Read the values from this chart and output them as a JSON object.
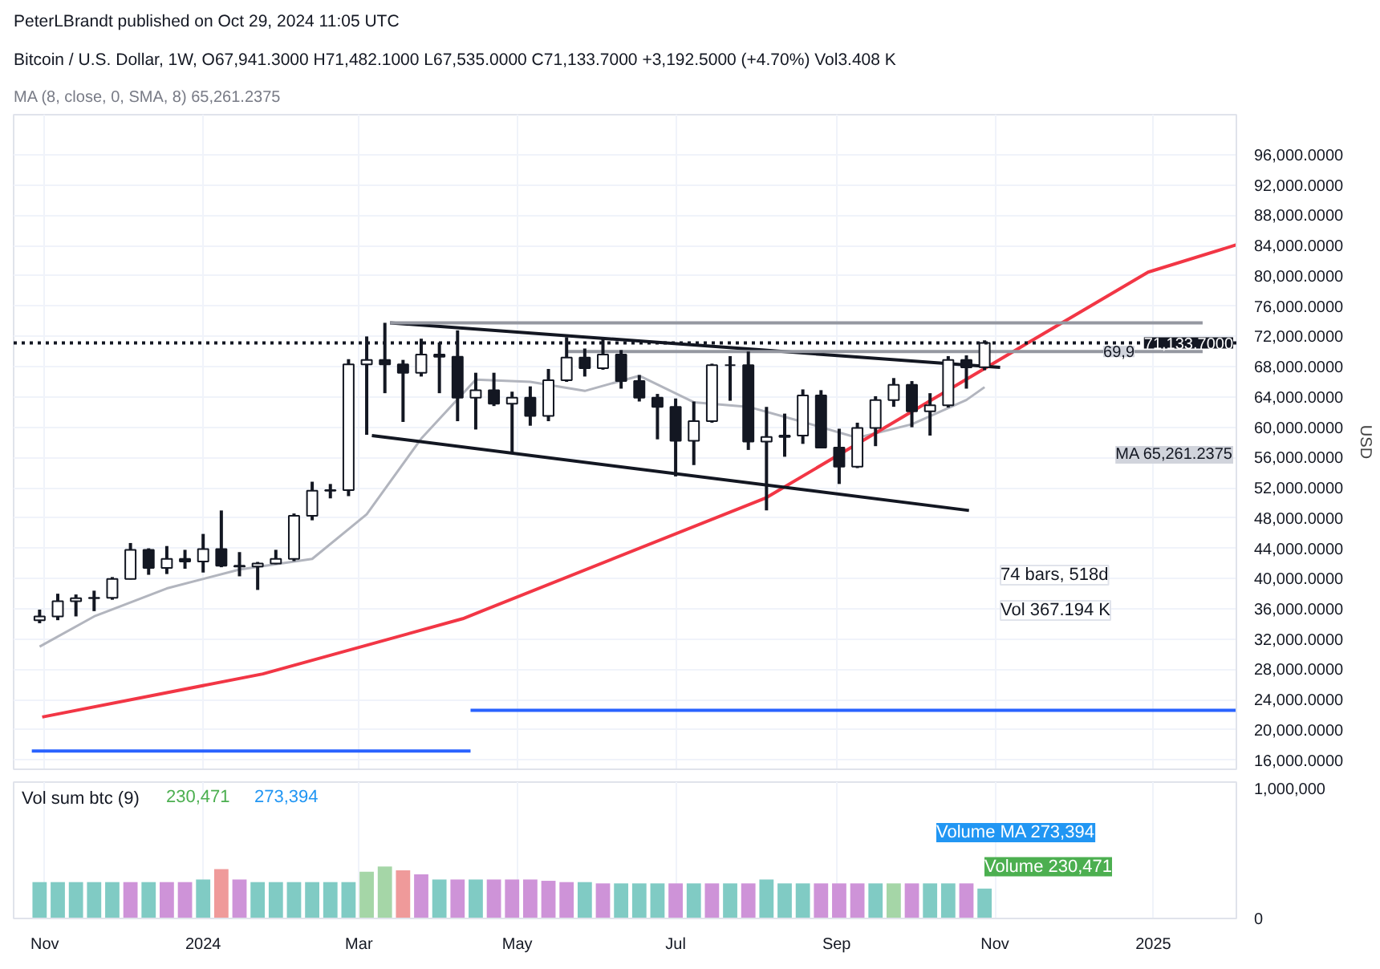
{
  "chart_data": [
    {
      "type": "candlestick",
      "title": "Bitcoin / U.S. Dollar, 1W, O67,941.3000 H71,482.1000 L67,535.0000 C71,133.7000 +3,192.5000 (+4.70%) Vol3.408 K",
      "subtitle": "MA (8, close, 0, SMA, 8) 65,261.2375",
      "ylabel": "USD",
      "annotations": [
        "PeterLBrandt published on Oct 29, 2024 11:05 UTC",
        "74 bars, 518d",
        "Vol 367.194 K",
        "MA 65,261.2375",
        {
          "text": "69,9",
          "x": "2024-12-26",
          "y": 70000
        }
      ],
      "x": [
        "2023-10-30",
        "2023-11-06",
        "2023-11-13",
        "2023-11-20",
        "2023-11-27",
        "2023-12-04",
        "2023-12-11",
        "2023-12-18",
        "2023-12-25",
        "2024-01-01",
        "2024-01-08",
        "2024-01-15",
        "2024-01-22",
        "2024-01-29",
        "2024-02-05",
        "2024-02-12",
        "2024-02-19",
        "2024-02-26",
        "2024-03-04",
        "2024-03-11",
        "2024-03-18",
        "2024-03-25",
        "2024-04-01",
        "2024-04-08",
        "2024-04-15",
        "2024-04-22",
        "2024-04-29",
        "2024-05-06",
        "2024-05-13",
        "2024-05-20",
        "2024-05-27",
        "2024-06-03",
        "2024-06-10",
        "2024-06-17",
        "2024-06-24",
        "2024-07-01",
        "2024-07-08",
        "2024-07-15",
        "2024-07-22",
        "2024-07-29",
        "2024-08-05",
        "2024-08-12",
        "2024-08-19",
        "2024-08-26",
        "2024-09-02",
        "2024-09-09",
        "2024-09-16",
        "2024-09-23",
        "2024-09-30",
        "2024-10-07",
        "2024-10-14",
        "2024-10-21",
        "2024-10-28"
      ],
      "ohlc": [
        [
          34500,
          35900,
          34100,
          35000
        ],
        [
          35000,
          38000,
          34500,
          37000
        ],
        [
          37000,
          37900,
          35000,
          37400
        ],
        [
          37400,
          38400,
          35700,
          37450
        ],
        [
          37450,
          40200,
          37200,
          39950
        ],
        [
          39950,
          44700,
          39900,
          43800
        ],
        [
          43800,
          44000,
          40500,
          41400
        ],
        [
          41400,
          44300,
          40600,
          42600
        ],
        [
          42600,
          43800,
          41300,
          42250
        ],
        [
          42250,
          45900,
          40800,
          43900
        ],
        [
          43900,
          49000,
          41500,
          41700
        ],
        [
          41700,
          43500,
          40300,
          41600
        ],
        [
          41600,
          42200,
          38500,
          42000
        ],
        [
          42000,
          43800,
          41900,
          42600
        ],
        [
          42600,
          48600,
          42300,
          48300
        ],
        [
          48300,
          52800,
          47700,
          51600
        ],
        [
          51600,
          52500,
          50600,
          51700
        ],
        [
          51700,
          69000,
          50900,
          68300
        ],
        [
          68300,
          72000,
          59000,
          68900
        ],
        [
          68900,
          73800,
          64500,
          68300
        ],
        [
          68300,
          68900,
          60700,
          67200
        ],
        [
          67200,
          71700,
          66700,
          69600
        ],
        [
          69600,
          71200,
          64500,
          69300
        ],
        [
          69300,
          72800,
          60800,
          63900
        ],
        [
          63900,
          67200,
          59700,
          64900
        ],
        [
          64900,
          67200,
          62800,
          63100
        ],
        [
          63100,
          64700,
          56500,
          63900
        ],
        [
          63900,
          65400,
          60200,
          61500
        ],
        [
          61500,
          67700,
          60800,
          66200
        ],
        [
          66200,
          71900,
          66000,
          69200
        ],
        [
          69200,
          70400,
          66700,
          67800
        ],
        [
          67800,
          71900,
          67600,
          69600
        ],
        [
          69600,
          70200,
          65100,
          66100
        ],
        [
          66100,
          66900,
          63400,
          63900
        ],
        [
          63900,
          64400,
          58400,
          62700
        ],
        [
          62700,
          63800,
          53500,
          58200
        ],
        [
          58200,
          63400,
          55000,
          60800
        ],
        [
          60800,
          68400,
          60600,
          68200
        ],
        [
          68200,
          69400,
          63500,
          68200
        ],
        [
          68200,
          70000,
          57000,
          58100
        ],
        [
          58100,
          62700,
          49000,
          58700
        ],
        [
          58700,
          61800,
          56100,
          58900
        ],
        [
          58900,
          65000,
          57800,
          64200
        ],
        [
          64200,
          64900,
          57200,
          57300
        ],
        [
          57300,
          59800,
          52500,
          54800
        ],
        [
          54800,
          60600,
          54600,
          59900
        ],
        [
          59900,
          64100,
          57500,
          63600
        ],
        [
          63600,
          66500,
          62700,
          65600
        ],
        [
          65600,
          66100,
          60000,
          62100
        ],
        [
          62100,
          64500,
          58900,
          62900
        ],
        [
          62900,
          69400,
          62600,
          68900
        ],
        [
          68900,
          69500,
          65100,
          67900
        ],
        [
          67941.3,
          71482.1,
          67535,
          71133.7
        ]
      ],
      "series": [
        {
          "type": "line",
          "color": "#b2b5be",
          "x": [
            "2023-10-30",
            "2023-11-20",
            "2023-12-18",
            "2024-01-15",
            "2024-02-12",
            "2024-03-04",
            "2024-03-25",
            "2024-04-15",
            "2024-05-06",
            "2024-05-27",
            "2024-06-17",
            "2024-07-08",
            "2024-07-29",
            "2024-08-19",
            "2024-09-09",
            "2024-09-30",
            "2024-10-21",
            "2024-10-28"
          ],
          "values": [
            31000,
            35000,
            38700,
            41200,
            42600,
            48500,
            58500,
            66300,
            66000,
            64800,
            66800,
            63300,
            62700,
            60700,
            58600,
            60400,
            63600,
            65300
          ]
        },
        {
          "type": "line",
          "color": "#f23645",
          "x": [
            "2023-10-31",
            "2024-01-24",
            "2024-04-10",
            "2024-08-05",
            "2024-11-13",
            "2024-12-30",
            "2025-02-02"
          ],
          "values": [
            21700,
            27400,
            34700,
            50700,
            71000,
            80500,
            84100
          ]
        },
        {
          "type": "line",
          "color": "#131722",
          "x": [
            "2024-03-13",
            "2024-11-03"
          ],
          "values": [
            73800,
            67900
          ]
        },
        {
          "type": "line",
          "color": "#131722",
          "x": [
            "2024-03-06",
            "2024-10-22"
          ],
          "values": [
            58900,
            49000
          ]
        },
        {
          "type": "line",
          "color": "#9598a1",
          "x": [
            "2024-03-13",
            "2025-01-20"
          ],
          "values": [
            73800,
            73800
          ]
        },
        {
          "type": "line",
          "color": "#9598a1",
          "x": [
            "2024-05-20",
            "2025-01-20"
          ],
          "values": [
            70000,
            70000
          ]
        },
        {
          "type": "line",
          "color": "#2962ff",
          "x": [
            "2024-04-13",
            "2025-02-02"
          ],
          "values": [
            22600,
            22600
          ]
        },
        {
          "type": "line",
          "color": "#2962ff",
          "x": [
            "2023-10-27",
            "2024-04-13"
          ],
          "values": [
            17200,
            17200
          ]
        }
      ],
      "ref_lines": [
        {
          "axis": "y",
          "value": 71133.7,
          "label": "71,133.7000",
          "line_style": "dotted",
          "color": "#131722"
        }
      ],
      "xlim": [
        "2023-10-20",
        "2025-02-02"
      ],
      "ylim": [
        14800,
        101300
      ],
      "yticks": [
        {
          "value": 16000,
          "label": "16,000.0000"
        },
        {
          "value": 20000,
          "label": "20,000.0000"
        },
        {
          "value": 24000,
          "label": "24,000.0000"
        },
        {
          "value": 28000,
          "label": "28,000.0000"
        },
        {
          "value": 32000,
          "label": "32,000.0000"
        },
        {
          "value": 36000,
          "label": "36,000.0000"
        },
        {
          "value": 40000,
          "label": "40,000.0000"
        },
        {
          "value": 44000,
          "label": "44,000.0000"
        },
        {
          "value": 48000,
          "label": "48,000.0000"
        },
        {
          "value": 52000,
          "label": "52,000.0000"
        },
        {
          "value": 56000,
          "label": "56,000.0000"
        },
        {
          "value": 60000,
          "label": "60,000.0000"
        },
        {
          "value": 64000,
          "label": "64,000.0000"
        },
        {
          "value": 68000,
          "label": "68,000.0000"
        },
        {
          "value": 72000,
          "label": "72,000.0000"
        },
        {
          "value": 76000,
          "label": "76,000.0000"
        },
        {
          "value": 80000,
          "label": "80,000.0000"
        },
        {
          "value": 84000,
          "label": "84,000.0000"
        },
        {
          "value": 88000,
          "label": "88,000.0000"
        },
        {
          "value": 92000,
          "label": "92,000.0000"
        },
        {
          "value": 96000,
          "label": "96,000.0000"
        }
      ],
      "grid": true,
      "tick_labels": "y"
    },
    {
      "type": "bar",
      "title": "Vol sum btc (9)",
      "annotations": [
        "230,471",
        "273,394",
        "Volume MA 273,394",
        "Volume 230,471"
      ],
      "x": [
        "2023-10-30",
        "2023-11-06",
        "2023-11-13",
        "2023-11-20",
        "2023-11-27",
        "2023-12-04",
        "2023-12-11",
        "2023-12-18",
        "2023-12-25",
        "2024-01-01",
        "2024-01-08",
        "2024-01-15",
        "2024-01-22",
        "2024-01-29",
        "2024-02-05",
        "2024-02-12",
        "2024-02-19",
        "2024-02-26",
        "2024-03-04",
        "2024-03-11",
        "2024-03-18",
        "2024-03-25",
        "2024-04-01",
        "2024-04-08",
        "2024-04-15",
        "2024-04-22",
        "2024-04-29",
        "2024-05-06",
        "2024-05-13",
        "2024-05-20",
        "2024-05-27",
        "2024-06-03",
        "2024-06-10",
        "2024-06-17",
        "2024-06-24",
        "2024-07-01",
        "2024-07-08",
        "2024-07-15",
        "2024-07-22",
        "2024-07-29",
        "2024-08-05",
        "2024-08-12",
        "2024-08-19",
        "2024-08-26",
        "2024-09-02",
        "2024-09-09",
        "2024-09-16",
        "2024-09-23",
        "2024-09-30",
        "2024-10-07",
        "2024-10-14",
        "2024-10-21",
        "2024-10-28"
      ],
      "values": [
        280000,
        280000,
        280000,
        280000,
        280000,
        280000,
        280000,
        280000,
        280000,
        300000,
        380000,
        300000,
        280000,
        280000,
        280000,
        280000,
        280000,
        280000,
        360000,
        400000,
        370000,
        340000,
        300000,
        300000,
        300000,
        300000,
        300000,
        300000,
        290000,
        280000,
        280000,
        270000,
        270000,
        270000,
        270000,
        270000,
        270000,
        270000,
        270000,
        270000,
        300000,
        270000,
        270000,
        270000,
        270000,
        270000,
        270000,
        270000,
        270000,
        270000,
        270000,
        270000,
        230000
      ],
      "colors": [
        "#80cbc4",
        "#80cbc4",
        "#80cbc4",
        "#80cbc4",
        "#80cbc4",
        "#ce93d8",
        "#80cbc4",
        "#ce93d8",
        "#ce93d8",
        "#80cbc4",
        "#ef9a9a",
        "#ce93d8",
        "#80cbc4",
        "#80cbc4",
        "#80cbc4",
        "#80cbc4",
        "#80cbc4",
        "#80cbc4",
        "#a5d6a7",
        "#a5d6a7",
        "#ef9a9a",
        "#ce93d8",
        "#80cbc4",
        "#ce93d8",
        "#80cbc4",
        "#ce93d8",
        "#ce93d8",
        "#ce93d8",
        "#ce93d8",
        "#ce93d8",
        "#80cbc4",
        "#ce93d8",
        "#80cbc4",
        "#80cbc4",
        "#80cbc4",
        "#ce93d8",
        "#80cbc4",
        "#ce93d8",
        "#80cbc4",
        "#ce93d8",
        "#80cbc4",
        "#80cbc4",
        "#80cbc4",
        "#ce93d8",
        "#ce93d8",
        "#ce93d8",
        "#80cbc4",
        "#a5d6a7",
        "#ce93d8",
        "#80cbc4",
        "#80cbc4",
        "#ce93d8",
        "#80cbc4"
      ],
      "xlim": [
        "2023-10-20",
        "2025-02-02"
      ],
      "ylim": [
        0,
        1050000
      ],
      "xticks": [
        {
          "value": "2023-11-01",
          "label": "Nov"
        },
        {
          "value": "2024-01-01",
          "label": "2024"
        },
        {
          "value": "2024-03-01",
          "label": "Mar"
        },
        {
          "value": "2024-05-01",
          "label": "May"
        },
        {
          "value": "2024-07-01",
          "label": "Jul"
        },
        {
          "value": "2024-09-01",
          "label": "Sep"
        },
        {
          "value": "2024-11-01",
          "label": "Nov"
        },
        {
          "value": "2025-01-01",
          "label": "2025"
        }
      ],
      "yticks": [
        {
          "value": 0,
          "label": "0"
        },
        {
          "value": 1000000,
          "label": "1,000,000"
        }
      ],
      "grid": "x"
    }
  ]
}
